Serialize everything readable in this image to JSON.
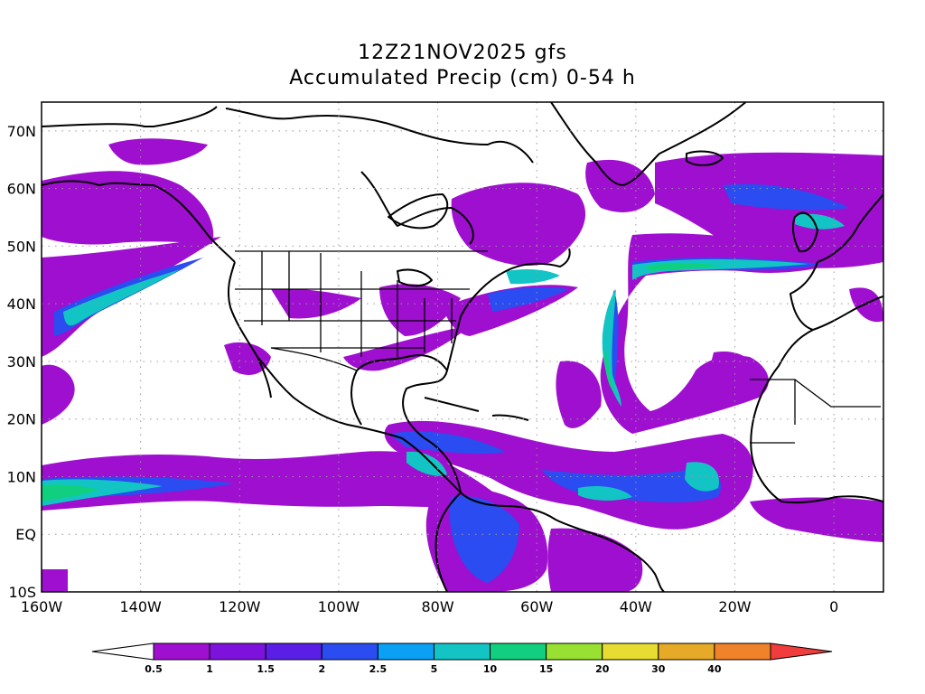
{
  "title": "12Z21NOV2025 gfs",
  "subtitle": "Accumulated Precip (cm) 0-54 h",
  "lat_labels": [
    "70N",
    "60N",
    "50N",
    "40N",
    "30N",
    "20N",
    "10N",
    "EQ",
    "10S"
  ],
  "lon_labels": [
    "160W",
    "140W",
    "120W",
    "100W",
    "80W",
    "60W",
    "40W",
    "20W",
    "0"
  ],
  "colorbar": {
    "labels": [
      "0.5",
      "1",
      "1.5",
      "2",
      "2.5",
      "5",
      "10",
      "15",
      "20",
      "30",
      "40"
    ],
    "colors": [
      "#ffffff",
      "#9f0fcf",
      "#7d12dc",
      "#5a1ee6",
      "#2a4cf0",
      "#0aa0f6",
      "#12c4c4",
      "#10d080",
      "#98e032",
      "#e6dc32",
      "#e6aa28",
      "#f0822a",
      "#f03c3c"
    ]
  },
  "map_extent": {
    "lon_min": -160,
    "lon_max": 10,
    "lat_min": -10,
    "lat_max": 75
  }
}
